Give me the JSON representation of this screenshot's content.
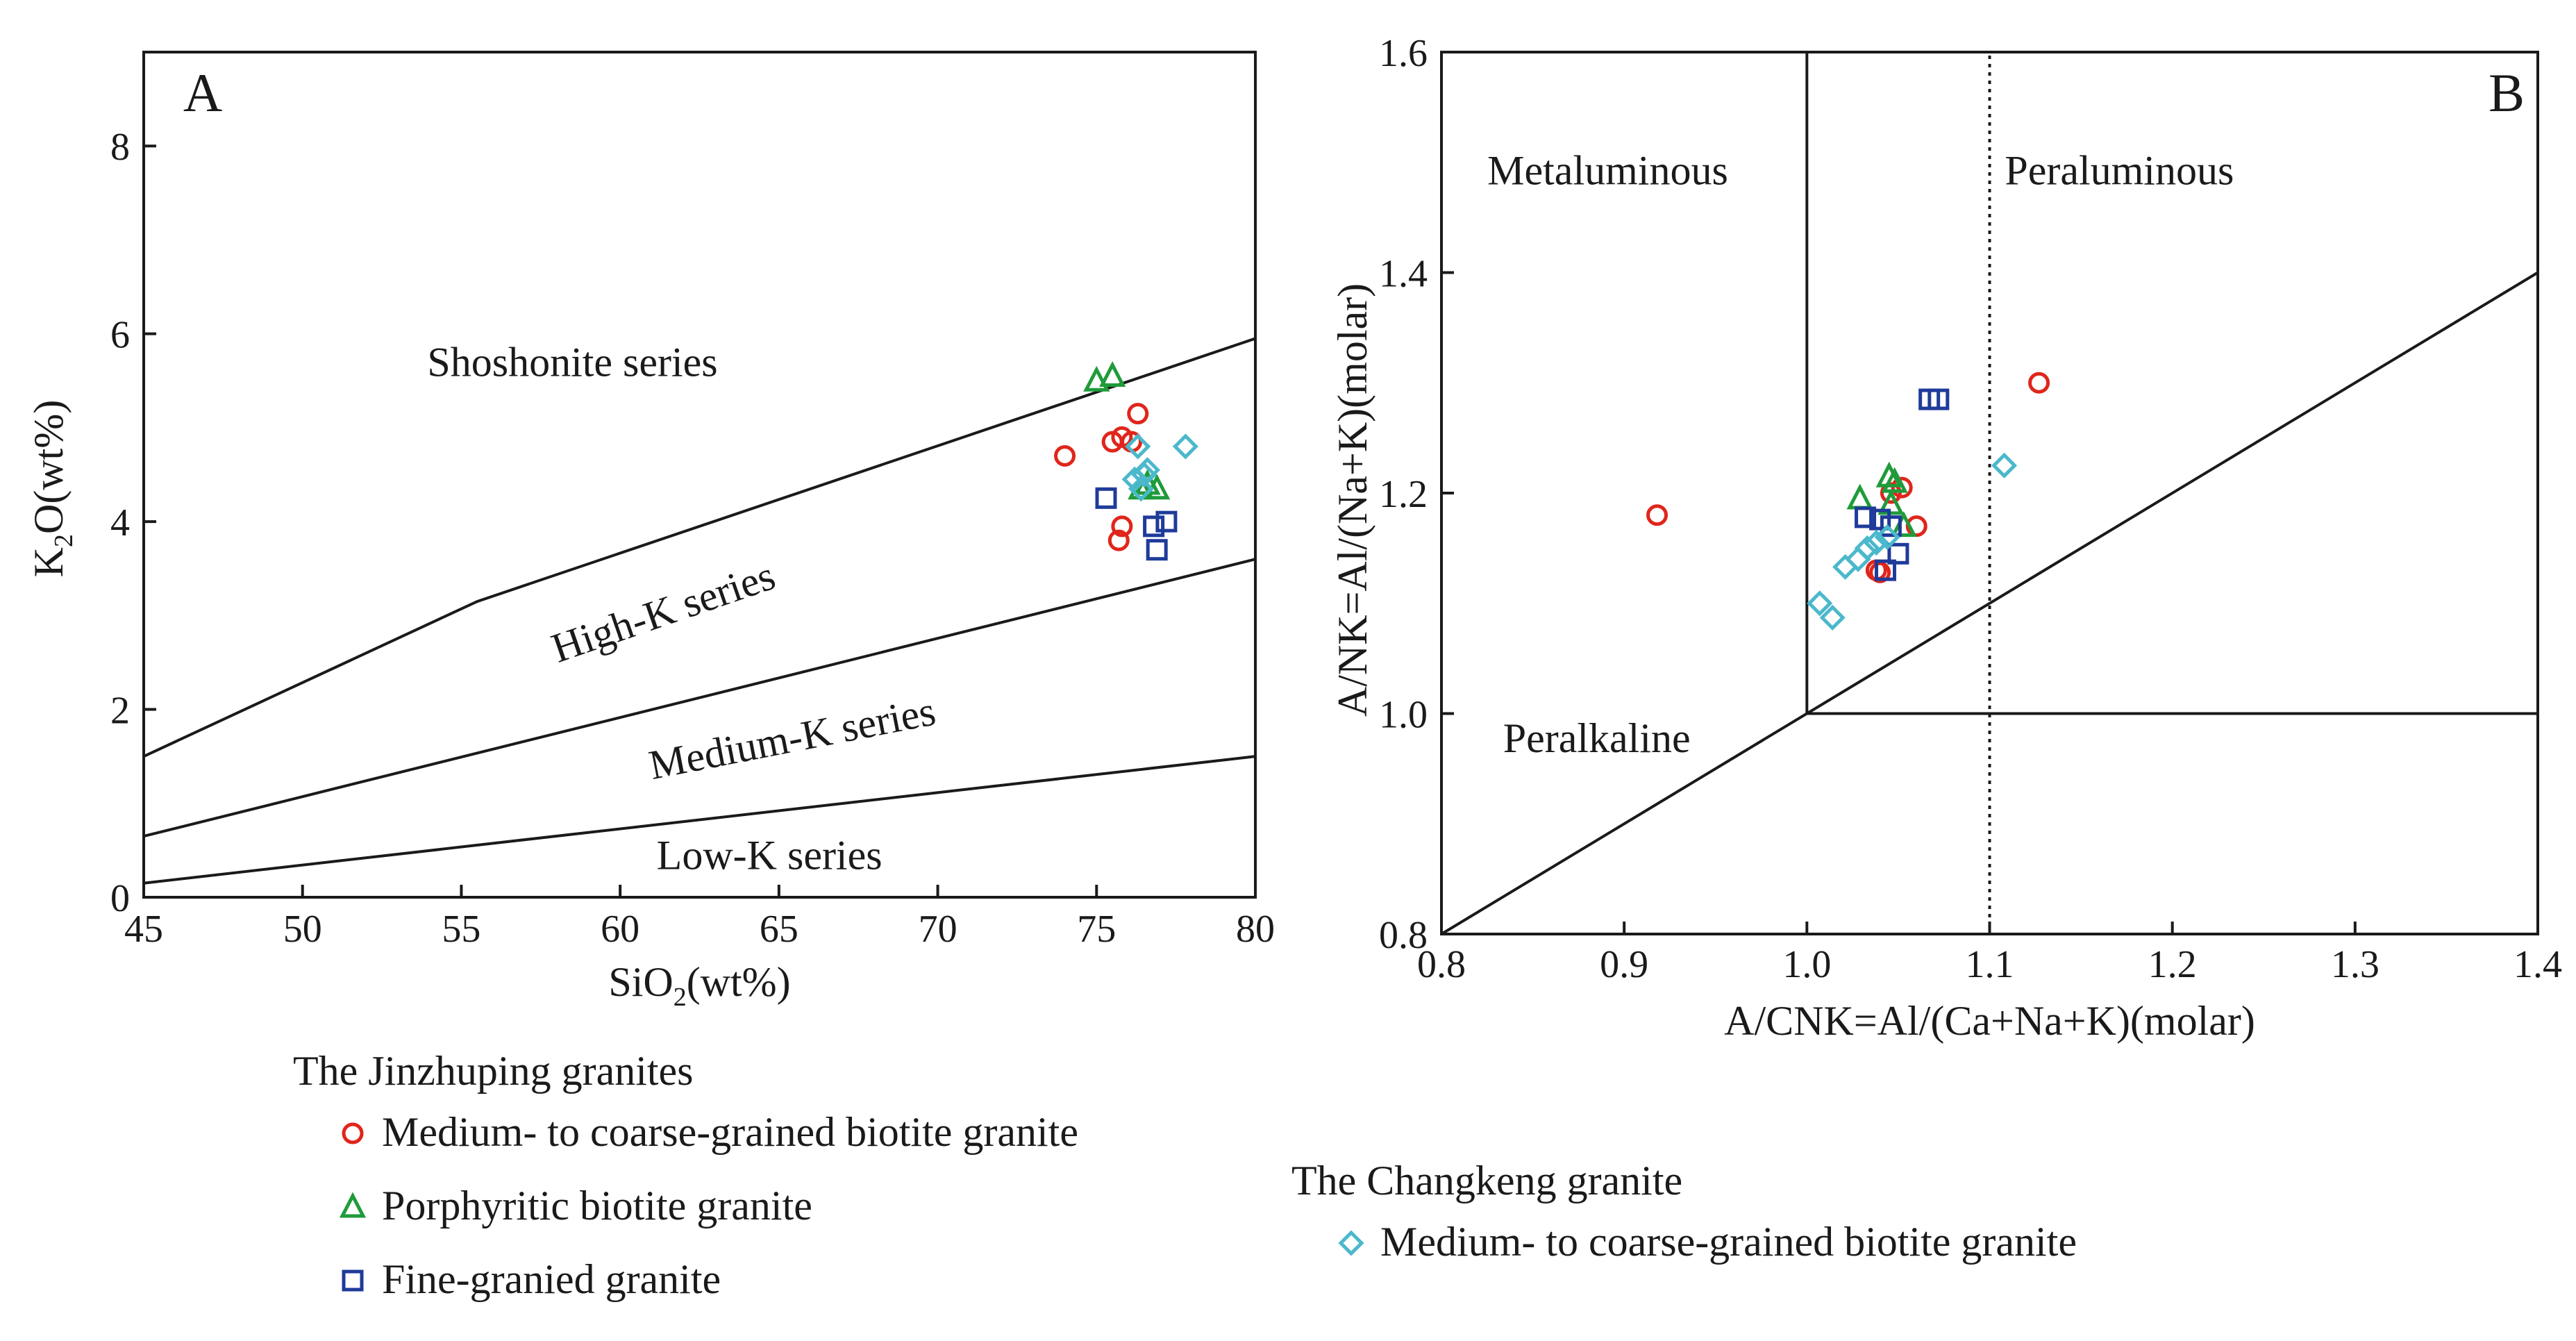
{
  "chart_data": [
    {
      "panel": "A",
      "type": "scatter",
      "xlabel": "SiO",
      "xlabel_sub": "2",
      "xlabel_suffix": "(wt%)",
      "ylabel": "K",
      "ylabel_sub": "2",
      "ylabel_suffix": "O(wt%)",
      "xlim": [
        45,
        80
      ],
      "ylim": [
        0,
        9
      ],
      "xticks": [
        45,
        50,
        55,
        60,
        65,
        70,
        75,
        80
      ],
      "yticks": [
        0,
        2,
        4,
        6,
        8
      ],
      "boundaries": [
        {
          "name": "shoshonite-highk",
          "points": [
            [
              45,
              1.5
            ],
            [
              55.5,
              3.15
            ],
            [
              80,
              5.95
            ]
          ]
        },
        {
          "name": "highk-mediumk",
          "points": [
            [
              45,
              0.65
            ],
            [
              80,
              3.6
            ]
          ]
        },
        {
          "name": "mediumk-lowk",
          "points": [
            [
              45,
              0.15
            ],
            [
              80,
              1.5
            ]
          ]
        }
      ],
      "region_labels": [
        {
          "text": "Shoshonite series",
          "x": 58.5,
          "y": 5.55,
          "rotate": 0
        },
        {
          "text": "High-K series",
          "x": 61.5,
          "y": 2.9,
          "rotate": -19
        },
        {
          "text": "Medium-K series",
          "x": 65.5,
          "y": 1.55,
          "rotate": -11
        },
        {
          "text": "Low-K series",
          "x": 64.7,
          "y": 0.3,
          "rotate": 0
        }
      ],
      "series": [
        {
          "name": "Medium- to coarse-grained biotite granite",
          "group": "jinzhuping",
          "marker": "circle",
          "color": "#e0251b",
          "x": [
            74.0,
            75.5,
            75.8,
            76.1,
            76.3,
            75.8,
            75.7
          ],
          "y": [
            4.7,
            4.85,
            4.9,
            4.85,
            5.15,
            3.95,
            3.8
          ]
        },
        {
          "name": "Porphyritic biotite granite",
          "group": "jinzhuping",
          "marker": "triangle",
          "color": "#1f9b3a",
          "x": [
            75.0,
            75.5,
            76.6,
            76.9,
            76.4
          ],
          "y": [
            5.5,
            5.55,
            4.4,
            4.35,
            4.35
          ]
        },
        {
          "name": "Fine-granied granite",
          "group": "jinzhuping",
          "marker": "square",
          "color": "#1f3b9a",
          "x": [
            75.3,
            76.8,
            77.2,
            76.9
          ],
          "y": [
            4.25,
            3.95,
            4.0,
            3.7
          ]
        },
        {
          "name": "Medium- to coarse-grained biotite granite",
          "group": "changkeng",
          "marker": "diamond",
          "color": "#4bb8cc",
          "x": [
            77.8,
            76.3,
            76.6,
            76.2,
            76.5,
            76.4
          ],
          "y": [
            4.8,
            4.8,
            4.55,
            4.45,
            4.5,
            4.35
          ]
        }
      ]
    },
    {
      "panel": "B",
      "type": "scatter",
      "xlabel": "A/CNK=Al/(Ca+Na+K)(molar)",
      "ylabel": "A/NK=Al/(Na+K)(molar)",
      "xlim": [
        0.8,
        1.4
      ],
      "ylim": [
        0.8,
        1.6
      ],
      "xticks": [
        "0.8",
        "0.9",
        "1.0",
        "1.1",
        "1.2",
        "1.3",
        "1.4"
      ],
      "yticks": [
        "0.8",
        "1.0",
        "1.2",
        "1.4",
        "1.6"
      ],
      "lines": [
        {
          "name": "a-cnk-1.0",
          "style": "solid",
          "points": [
            [
              1.0,
              1.0
            ],
            [
              1.0,
              1.6
            ]
          ]
        },
        {
          "name": "a-cnk-1.1",
          "style": "dotted",
          "points": [
            [
              1.1,
              0.8
            ],
            [
              1.1,
              1.6
            ]
          ]
        },
        {
          "name": "a-nk-1.0",
          "style": "solid",
          "points": [
            [
              1.0,
              1.0
            ],
            [
              1.4,
              1.0
            ]
          ]
        },
        {
          "name": "diagonal",
          "style": "solid",
          "points": [
            [
              0.8,
              0.8
            ],
            [
              1.4,
              1.4
            ]
          ]
        }
      ],
      "region_labels": [
        {
          "text": "Metaluminous",
          "x": 0.891,
          "y": 1.48
        },
        {
          "text": "Peraluminous",
          "x": 1.171,
          "y": 1.48
        },
        {
          "text": "Peralkaline",
          "x": 0.885,
          "y": 0.965
        }
      ],
      "series": [
        {
          "name": "Medium- to coarse-grained biotite granite",
          "group": "jinzhuping",
          "marker": "circle",
          "color": "#e0251b",
          "x": [
            0.918,
            1.127,
            1.046,
            1.052,
            1.06,
            1.038,
            1.04
          ],
          "y": [
            1.18,
            1.3,
            1.2,
            1.205,
            1.17,
            1.13,
            1.128
          ]
        },
        {
          "name": "Porphyritic biotite granite",
          "group": "jinzhuping",
          "marker": "triangle",
          "color": "#1f9b3a",
          "x": [
            1.029,
            1.045,
            1.048,
            1.053,
            1.046
          ],
          "y": [
            1.195,
            1.215,
            1.21,
            1.17,
            1.19
          ]
        },
        {
          "name": "Fine-granied granite",
          "group": "jinzhuping",
          "marker": "square",
          "color": "#1f3b9a",
          "x": [
            1.067,
            1.072,
            1.032,
            1.04,
            1.046,
            1.05,
            1.043
          ],
          "y": [
            1.285,
            1.285,
            1.178,
            1.176,
            1.17,
            1.145,
            1.13
          ]
        },
        {
          "name": "Medium- to coarse-grained biotite granite",
          "group": "changkeng",
          "marker": "diamond",
          "color": "#4bb8cc",
          "x": [
            1.108,
            1.007,
            1.014,
            1.021,
            1.028,
            1.033,
            1.038,
            1.044
          ],
          "y": [
            1.225,
            1.1,
            1.087,
            1.133,
            1.14,
            1.15,
            1.155,
            1.16
          ]
        }
      ]
    }
  ],
  "legend": {
    "jinzhuping": {
      "title": "The Jinzhuping granites",
      "items": [
        {
          "label": "Medium- to coarse-grained biotite granite",
          "marker": "circle",
          "color": "#e0251b"
        },
        {
          "label": "Porphyritic biotite granite",
          "marker": "triangle",
          "color": "#1f9b3a"
        },
        {
          "label": "Fine-granied granite",
          "marker": "square",
          "color": "#1f3b9a"
        }
      ]
    },
    "changkeng": {
      "title": "The Changkeng granite",
      "items": [
        {
          "label": "Medium- to coarse-grained biotite granite",
          "marker": "diamond",
          "color": "#4bb8cc"
        }
      ]
    }
  }
}
